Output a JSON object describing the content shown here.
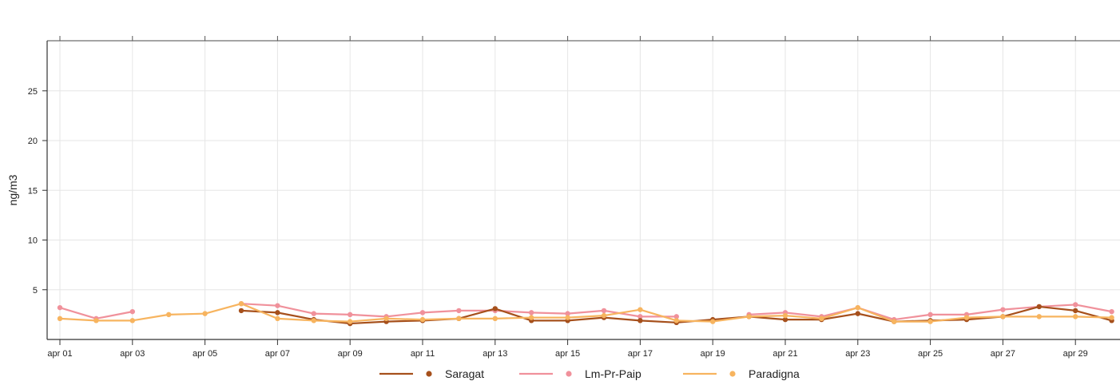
{
  "chart_data": {
    "type": "line",
    "title": "",
    "xlabel": "",
    "ylabel": "ng/m3",
    "ylim": [
      0,
      30
    ],
    "yticks": [
      5,
      10,
      15,
      20,
      25
    ],
    "xlim": [
      1,
      30
    ],
    "x": [
      1,
      2,
      3,
      4,
      5,
      6,
      7,
      8,
      9,
      10,
      11,
      12,
      13,
      14,
      15,
      16,
      17,
      18,
      19,
      20,
      21,
      22,
      23,
      24,
      25,
      26,
      27,
      28,
      29,
      30
    ],
    "xtick_positions": [
      1,
      3,
      5,
      7,
      9,
      11,
      13,
      15,
      17,
      19,
      21,
      23,
      25,
      27,
      29
    ],
    "xtick_labels": [
      "apr 01",
      "apr 03",
      "apr 05",
      "apr 07",
      "apr 09",
      "apr 11",
      "apr 13",
      "apr 15",
      "apr 17",
      "apr 19",
      "apr 21",
      "apr 23",
      "apr 25",
      "apr 27",
      "apr 29"
    ],
    "grid": true,
    "legend_position": "bottom",
    "series": [
      {
        "name": "Saragat",
        "color": "#a6501c",
        "values": [
          null,
          null,
          null,
          null,
          null,
          2.9,
          2.7,
          2.0,
          1.6,
          1.8,
          1.9,
          2.1,
          3.1,
          1.9,
          1.9,
          2.2,
          1.9,
          1.7,
          2.0,
          2.3,
          2.0,
          2.0,
          2.6,
          1.8,
          1.9,
          2.0,
          2.3,
          3.3,
          2.9,
          1.9
        ]
      },
      {
        "name": "Lm-Pr-Paip",
        "color": "#f0919b",
        "values": [
          3.2,
          2.1,
          2.8,
          null,
          null,
          3.6,
          3.4,
          2.6,
          2.5,
          2.3,
          2.7,
          2.9,
          2.9,
          2.7,
          2.6,
          2.9,
          2.3,
          2.3,
          null,
          2.5,
          2.7,
          2.3,
          3.2,
          2.0,
          2.5,
          2.5,
          3.0,
          3.3,
          3.5,
          2.8
        ]
      },
      {
        "name": "Paradigna",
        "color": "#f7b45f",
        "values": [
          2.1,
          1.9,
          1.9,
          2.5,
          2.6,
          3.6,
          2.1,
          1.9,
          1.8,
          2.1,
          2.0,
          2.1,
          2.1,
          2.2,
          2.2,
          2.4,
          3.0,
          1.9,
          1.8,
          2.3,
          2.4,
          2.1,
          3.2,
          1.8,
          1.8,
          2.2,
          2.3,
          2.3,
          2.3,
          2.2
        ]
      }
    ]
  }
}
